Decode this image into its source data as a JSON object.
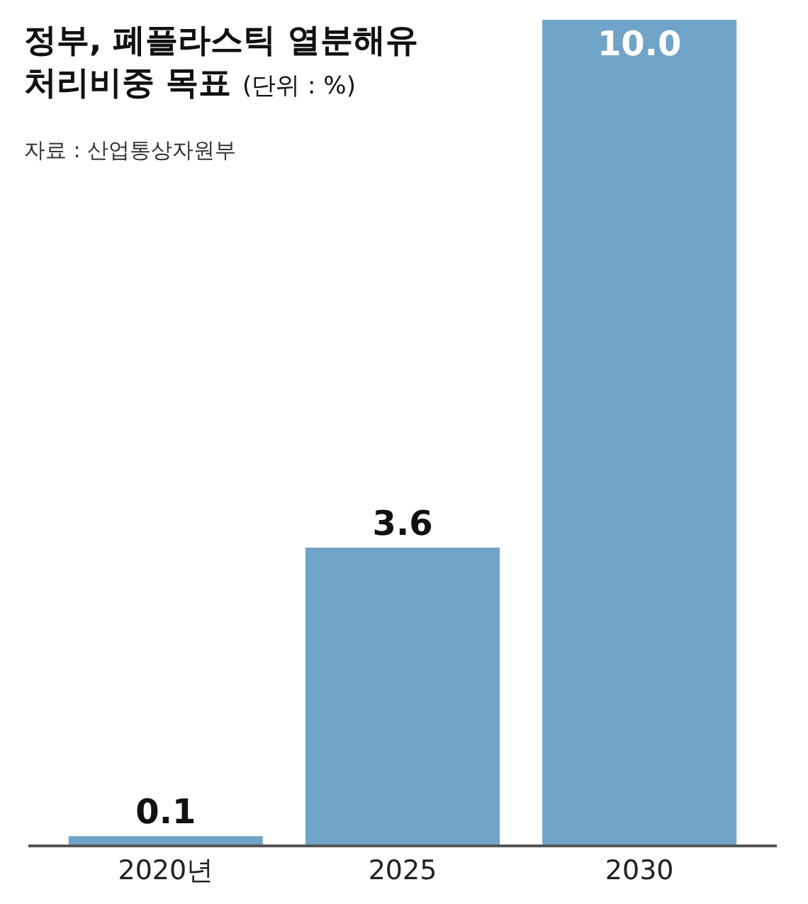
{
  "chart_data": {
    "type": "bar",
    "title": "정부, 폐플라스틱 열분해유\n처리비중 목표",
    "subtitle": "(단위 : %)",
    "annotations": [
      "자료 : 산업통상자원부"
    ],
    "categories": [
      "2020년",
      "2025",
      "2030"
    ],
    "values": [
      0.1,
      3.6,
      10.0
    ],
    "value_labels": [
      "0.1",
      "3.6",
      "10.0"
    ],
    "color": "#6fa3c8",
    "legend": false,
    "tick_labels": "x"
  }
}
